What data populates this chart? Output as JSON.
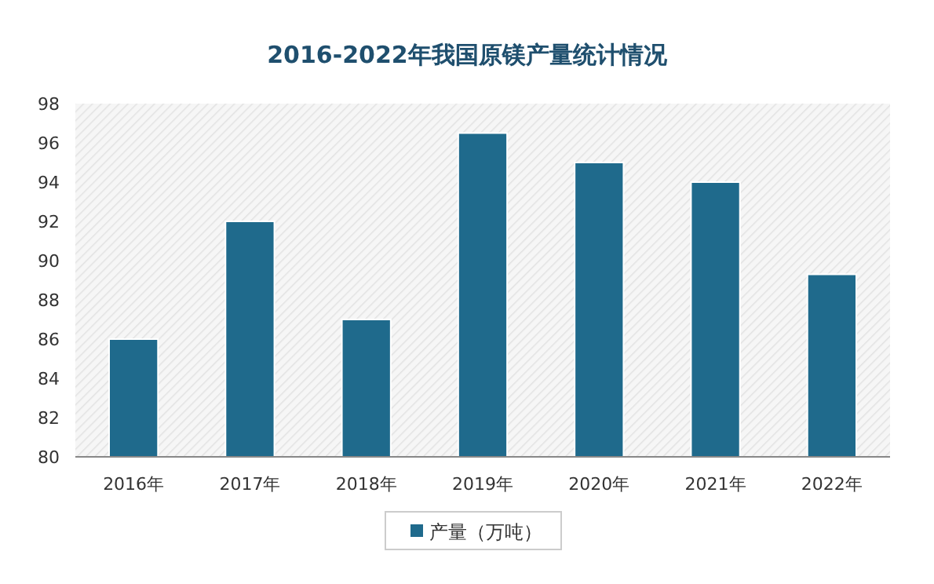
{
  "chart_data": {
    "type": "bar",
    "title": "2016-2022年我国原镁产量统计情况",
    "categories": [
      "2016年",
      "2017年",
      "2018年",
      "2019年",
      "2020年",
      "2021年",
      "2022年"
    ],
    "series": [
      {
        "name": "产量（万吨）",
        "color": "#1f6a8c",
        "values": [
          86,
          92,
          87,
          96.5,
          95,
          94,
          89.3
        ]
      }
    ],
    "ylim": [
      80,
      98
    ],
    "yticks": [
      80,
      82,
      84,
      86,
      88,
      90,
      92,
      94,
      96,
      98
    ],
    "grid": false,
    "legend": "bottom"
  }
}
